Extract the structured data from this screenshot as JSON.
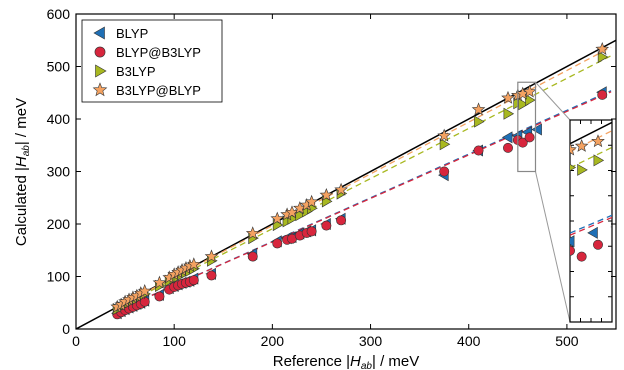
{
  "chart_data": {
    "type": "scatter",
    "xlabel": {
      "pre": "Reference |",
      "sym": "H",
      "sub": "ab",
      "post": "| / meV"
    },
    "ylabel": {
      "pre": "Calculated |",
      "sym": "H",
      "sub": "ab",
      "post": "| / meV"
    },
    "xlim": [
      0,
      550
    ],
    "ylim": [
      0,
      600
    ],
    "x_ticks": [
      "0",
      "100",
      "200",
      "300",
      "400",
      "500"
    ],
    "y_ticks": [
      "0",
      "100",
      "200",
      "300",
      "400",
      "500",
      "600"
    ],
    "grid": false,
    "legend_position": "top-left",
    "reference_line": {
      "from": [
        0,
        0
      ],
      "to": [
        550,
        550
      ],
      "color": "#000000"
    },
    "inset": {
      "zoom_x": [
        450,
        468
      ],
      "zoom_y": [
        300,
        470
      ]
    },
    "series": [
      {
        "name": "BLYP",
        "marker": "triangle-left",
        "color": "#1f6fb5",
        "fit_slope": 0.833,
        "x": [
          42,
          46,
          50,
          54,
          58,
          62,
          66,
          70,
          85,
          95,
          100,
          104,
          108,
          112,
          116,
          120,
          138,
          180,
          205,
          215,
          220,
          228,
          235,
          240,
          255,
          270,
          375,
          410,
          440,
          450,
          460,
          470,
          536
        ],
        "y": [
          30,
          34,
          38,
          41,
          44,
          48,
          50,
          54,
          65,
          78,
          82,
          85,
          88,
          90,
          92,
          96,
          105,
          143,
          167,
          173,
          175,
          182,
          186,
          188,
          200,
          210,
          293,
          340,
          365,
          368,
          375,
          380,
          451
        ]
      },
      {
        "name": "BLYP@B3LYP",
        "marker": "circle",
        "color": "#d7263d",
        "fit_slope": 0.829,
        "x": [
          42,
          46,
          50,
          54,
          58,
          62,
          66,
          70,
          85,
          95,
          100,
          104,
          108,
          112,
          116,
          120,
          138,
          180,
          205,
          215,
          220,
          228,
          235,
          240,
          255,
          270,
          375,
          410,
          440,
          450,
          455,
          462,
          536
        ],
        "y": [
          28,
          32,
          36,
          39,
          42,
          45,
          48,
          52,
          62,
          75,
          80,
          83,
          86,
          88,
          90,
          93,
          102,
          138,
          163,
          170,
          172,
          178,
          183,
          186,
          197,
          207,
          300,
          340,
          345,
          360,
          355,
          365,
          446
        ]
      },
      {
        "name": "B3LYP",
        "marker": "triangle-right",
        "color": "#a8b820",
        "fit_slope": 0.955,
        "x": [
          42,
          46,
          50,
          54,
          58,
          62,
          66,
          70,
          85,
          95,
          100,
          104,
          108,
          112,
          116,
          120,
          138,
          180,
          205,
          215,
          220,
          228,
          235,
          240,
          255,
          270,
          375,
          410,
          440,
          450,
          455,
          462,
          536
        ],
        "y": [
          38,
          42,
          47,
          51,
          55,
          58,
          63,
          67,
          82,
          92,
          97,
          100,
          104,
          108,
          111,
          115,
          130,
          173,
          198,
          205,
          210,
          217,
          224,
          230,
          243,
          258,
          352,
          395,
          410,
          430,
          428,
          436,
          518
        ]
      },
      {
        "name": "B3LYP@BLYP",
        "marker": "star",
        "color": "#f4a261",
        "fit_slope": 0.985,
        "x": [
          42,
          46,
          50,
          54,
          58,
          62,
          66,
          70,
          85,
          95,
          100,
          104,
          108,
          112,
          116,
          120,
          138,
          180,
          205,
          215,
          220,
          228,
          235,
          240,
          255,
          270,
          375,
          410,
          440,
          450,
          455,
          462,
          536
        ],
        "y": [
          42,
          46,
          52,
          56,
          60,
          63,
          68,
          72,
          88,
          98,
          104,
          108,
          112,
          116,
          120,
          123,
          138,
          182,
          210,
          218,
          222,
          230,
          236,
          242,
          255,
          265,
          368,
          418,
          440,
          445,
          448,
          452,
          533
        ]
      }
    ]
  }
}
